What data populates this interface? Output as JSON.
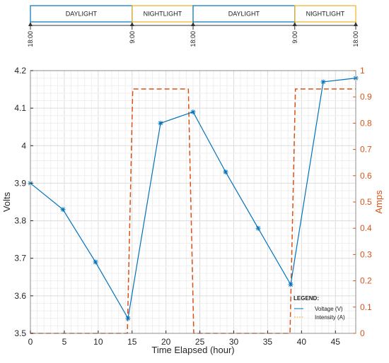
{
  "chart_data": {
    "type": "line",
    "xlabel": "Time Elapsed (hour)",
    "ylabel": "Volts",
    "ylabel_right": "Amps",
    "xlim": [
      0,
      48
    ],
    "ylim": [
      3.5,
      4.2
    ],
    "ylim_right": [
      0,
      1
    ],
    "x_ticks": [
      0,
      5,
      10,
      15,
      20,
      25,
      30,
      35,
      40,
      45
    ],
    "y_ticks": [
      3.5,
      3.6,
      3.7,
      3.8,
      3.9,
      4.0,
      4.1,
      4.2
    ],
    "y_tick_labels": [
      "3.5",
      "3.6",
      "3.7",
      "3.8",
      "3.9",
      "4",
      "4.1",
      "4.2"
    ],
    "y_right_ticks": [
      0,
      0.1,
      0.2,
      0.3,
      0.4,
      0.5,
      0.6,
      0.7,
      0.8,
      0.9,
      1
    ],
    "y_right_tick_labels": [
      "0",
      "0.1",
      "0.2",
      "0.3",
      "0.4",
      "0.5",
      "0.6",
      "0.7",
      "0.8",
      "0.9",
      "1"
    ],
    "grid": true,
    "legend": {
      "title": "LEGEND:",
      "placement": "bottom-right",
      "entries": [
        "Voltage (V)",
        "Intensity (A)"
      ]
    },
    "series": [
      {
        "name": "Voltage (V)",
        "axis": "left",
        "color": "#0072bd",
        "marker": "asterisk",
        "x": [
          0,
          4.8,
          9.6,
          14.4,
          19.2,
          24,
          28.8,
          33.6,
          38.4,
          43.2,
          48
        ],
        "y": [
          3.9,
          3.83,
          3.69,
          3.54,
          4.06,
          4.09,
          3.93,
          3.78,
          3.63,
          4.17,
          4.18
        ]
      },
      {
        "name": "Intensity (A)",
        "axis": "right",
        "color": "#d95319",
        "style": "dashed",
        "x": [
          0,
          14.3,
          15.1,
          23.3,
          24.1,
          38.3,
          39.1,
          48
        ],
        "y": [
          0,
          0,
          0.93,
          0.93,
          0,
          0,
          0.93,
          0.93
        ]
      }
    ],
    "timeline": {
      "phases": [
        {
          "label": "DAYLIGHT",
          "start": 0,
          "end": 15,
          "color": "#0072bd"
        },
        {
          "label": "NIGHTLIGHT",
          "start": 15,
          "end": 24,
          "color": "#edb120"
        },
        {
          "label": "DAYLIGHT",
          "start": 24,
          "end": 39,
          "color": "#0072bd"
        },
        {
          "label": "NIGHTLIGHT",
          "start": 39,
          "end": 48,
          "color": "#edb120"
        }
      ],
      "time_markers": [
        {
          "label": "18:00",
          "x": 0
        },
        {
          "label": "9:00",
          "x": 15
        },
        {
          "label": "18:00",
          "x": 24
        },
        {
          "label": "9:00",
          "x": 39
        },
        {
          "label": "18:00",
          "x": 48
        }
      ]
    }
  }
}
